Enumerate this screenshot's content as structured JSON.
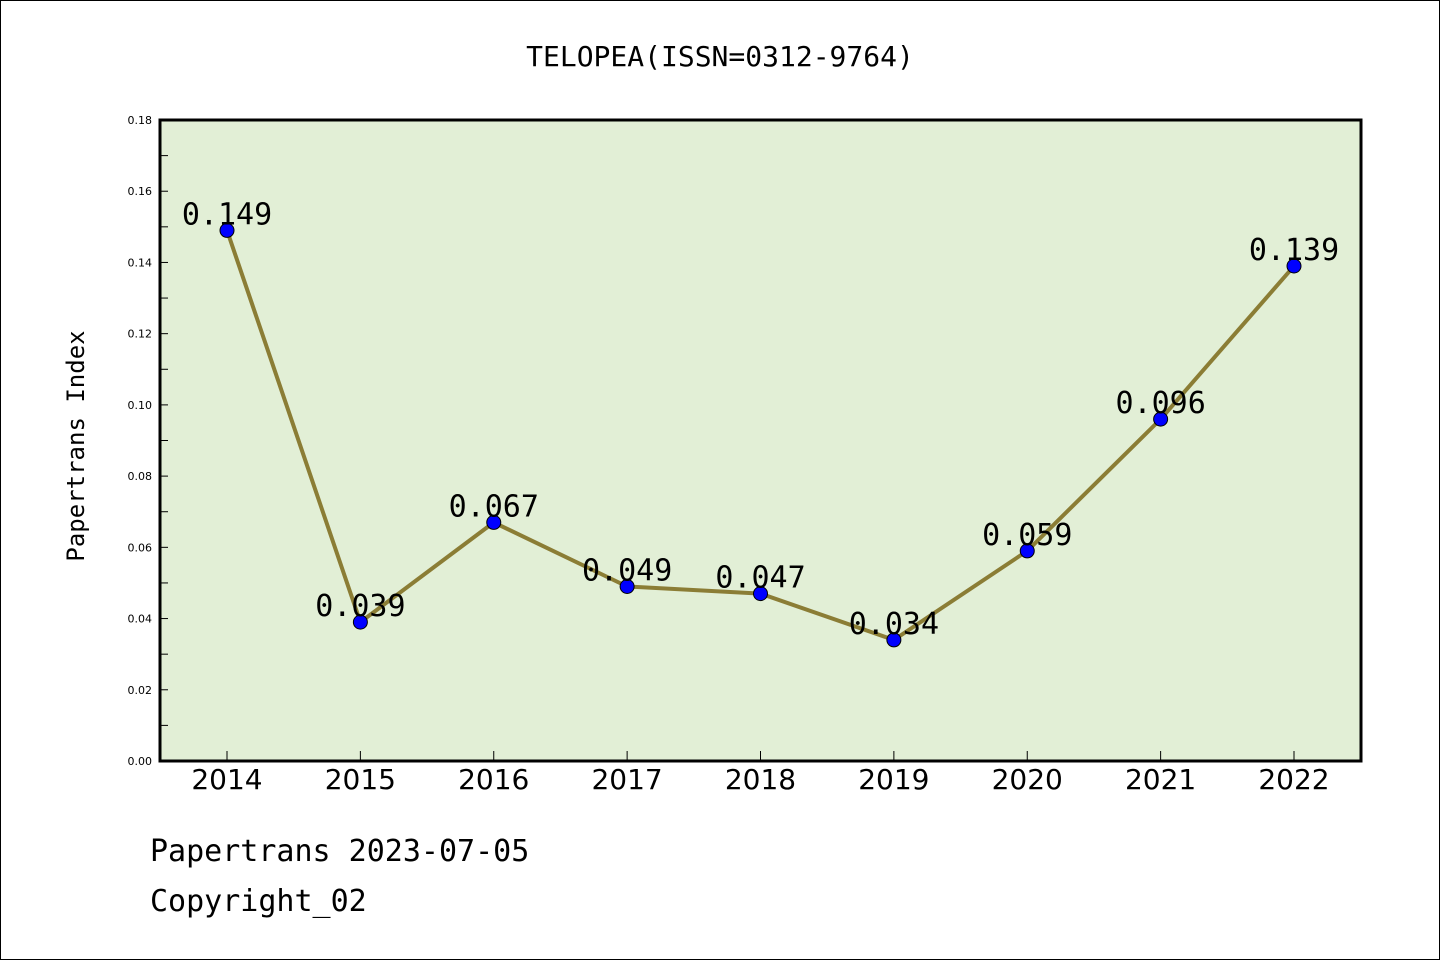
{
  "chart_data": {
    "type": "line",
    "title": "TELOPEA(ISSN=0312-9764)",
    "xlabel": "",
    "ylabel": "Papertrans Index",
    "categories": [
      "2014",
      "2015",
      "2016",
      "2017",
      "2018",
      "2019",
      "2020",
      "2021",
      "2022"
    ],
    "series": [
      {
        "values": [
          0.149,
          0.039,
          0.067,
          0.049,
          0.047,
          0.034,
          0.059,
          0.096,
          0.139
        ],
        "data_labels": [
          "0.149",
          "0.039",
          "0.067",
          "0.049",
          "0.047",
          "0.034",
          "0.059",
          "0.096",
          "0.139"
        ]
      }
    ],
    "ylim": [
      0,
      0.18
    ],
    "yticks": [
      "0.00",
      "0.02",
      "0.04",
      "0.06",
      "0.08",
      "0.10",
      "0.12",
      "0.14",
      "0.16",
      "0.18"
    ],
    "grid": false,
    "colors": {
      "plot_background": "#e2efd6",
      "line": "#8b7d35",
      "marker": "#0000ff"
    }
  },
  "footer": {
    "line1": "Papertrans 2023-07-05",
    "line2": "Copyright_02"
  }
}
